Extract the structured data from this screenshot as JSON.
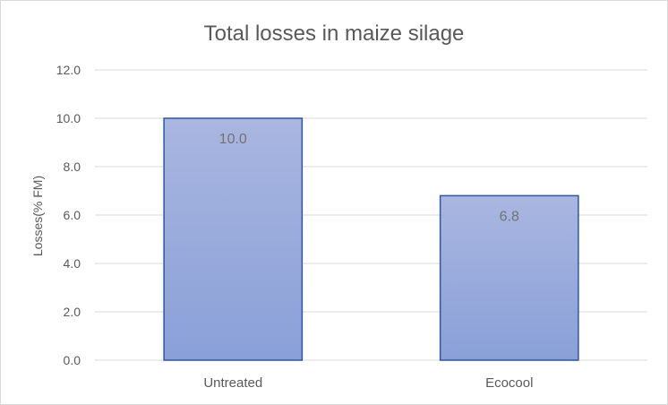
{
  "chart_data": {
    "type": "bar",
    "title": "Total losses in maize silage",
    "xlabel": "",
    "ylabel": "Losses(% FM)",
    "categories": [
      "Untreated",
      "Ecocool"
    ],
    "values": [
      10.0,
      6.8
    ],
    "data_labels": [
      "10.0",
      "6.8"
    ],
    "ylim": [
      0,
      12
    ],
    "yticks": [
      "0.0",
      "2.0",
      "4.0",
      "6.0",
      "8.0",
      "10.0",
      "12.0"
    ],
    "grid": true,
    "legend": "none",
    "colors": {
      "bar_fill_top": "#a9b6e0",
      "bar_fill_bottom": "#8aa0d8",
      "bar_border": "#2f55a4",
      "grid": "#d9d9d9",
      "text": "#595959",
      "data_label": "#767171"
    }
  }
}
